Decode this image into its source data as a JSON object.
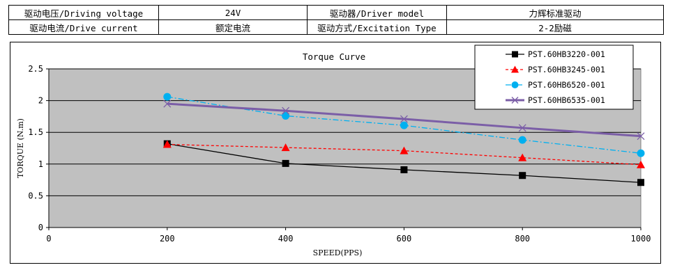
{
  "spec_table": {
    "rows": [
      {
        "label1": "驱动电压/Driving voltage",
        "value1": "24V",
        "label2": "驱动器/Driver model",
        "value2": "力辉标准驱动"
      },
      {
        "label1": "驱动电流/Drive current",
        "value1": "额定电流",
        "label2": "驱动方式/Excitation Type",
        "value2": "2-2励磁"
      }
    ]
  },
  "chart_data": {
    "type": "line",
    "title": "Torque Curve",
    "xlabel": "SPEED(PPS)",
    "ylabel": "TORQUE (N.m)",
    "xlim": [
      0,
      1000
    ],
    "ylim": [
      0,
      2.5
    ],
    "x_ticks": [
      "0",
      "200",
      "400",
      "600",
      "800",
      "1000"
    ],
    "y_ticks": [
      "0",
      "0.5",
      "1",
      "1.5",
      "2",
      "2.5"
    ],
    "grid": "horizontal",
    "legend_position": "top-right",
    "x": [
      200,
      400,
      600,
      800,
      1000
    ],
    "series": [
      {
        "name": "PST.60HB3220-001",
        "values": [
          1.32,
          1.01,
          0.91,
          0.82,
          0.71
        ],
        "color": "#000000",
        "marker": "square",
        "line": "solid"
      },
      {
        "name": "PST.60HB3245-001",
        "values": [
          1.31,
          1.26,
          1.21,
          1.1,
          0.99
        ],
        "color": "#ff0000",
        "marker": "triangle",
        "line": "dashed"
      },
      {
        "name": "PST.60HB6520-001",
        "values": [
          2.06,
          1.76,
          1.61,
          1.38,
          1.17
        ],
        "color": "#00b0f0",
        "marker": "circle",
        "line": "dashdot"
      },
      {
        "name": "PST.60HB6535-001",
        "values": [
          1.95,
          1.84,
          1.71,
          1.57,
          1.44
        ],
        "color": "#7b5ea7",
        "marker": "x",
        "line": "solid"
      }
    ],
    "plot_background": "#c0c0c0"
  }
}
